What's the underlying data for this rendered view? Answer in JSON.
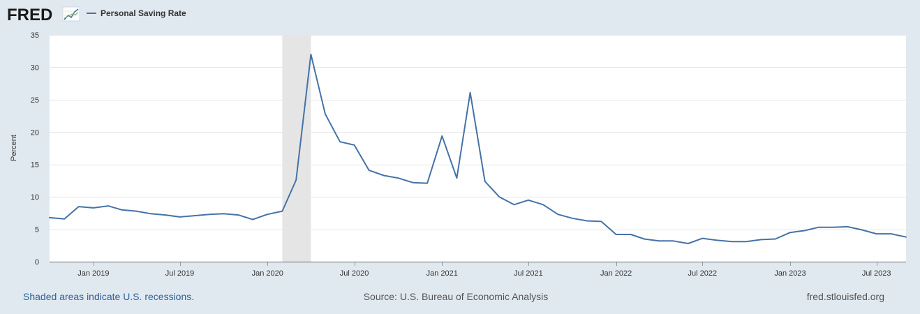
{
  "header": {
    "logo_text": "FRED",
    "logo_icon": "chart-line-icon",
    "legend_label": "Personal Saving Rate"
  },
  "footer": {
    "recession_note": "Shaded areas indicate U.S. recessions.",
    "source": "Source: U.S. Bureau of Economic Analysis",
    "site": "fred.stlouisfed.org"
  },
  "colors": {
    "background": "#e1e9f0",
    "plot_background": "#ffffff",
    "series": "#4572a7",
    "recession_shade": "#e5e5e5",
    "grid": "#e6e6e6",
    "footer_link": "#2f5f98",
    "footer_text": "#555555",
    "logo": "#1a1a1a"
  },
  "chart_data": {
    "type": "line",
    "title": "",
    "xlabel": "",
    "ylabel": "Percent",
    "ylim": [
      0,
      35
    ],
    "yticks": [
      0,
      5,
      10,
      15,
      20,
      25,
      30,
      35
    ],
    "xlim": [
      "2018-10-01",
      "2023-09-01"
    ],
    "xticks": [
      {
        "date": "2019-01-01",
        "label": "Jan 2019"
      },
      {
        "date": "2019-07-01",
        "label": "Jul 2019"
      },
      {
        "date": "2020-01-01",
        "label": "Jan 2020"
      },
      {
        "date": "2020-07-01",
        "label": "Jul 2020"
      },
      {
        "date": "2021-01-01",
        "label": "Jan 2021"
      },
      {
        "date": "2021-07-01",
        "label": "Jul 2021"
      },
      {
        "date": "2022-01-01",
        "label": "Jan 2022"
      },
      {
        "date": "2022-07-01",
        "label": "Jul 2022"
      },
      {
        "date": "2023-01-01",
        "label": "Jan 2023"
      },
      {
        "date": "2023-07-01",
        "label": "Jul 2023"
      }
    ],
    "grid": true,
    "legend_position": "top-left",
    "recessions": [
      {
        "start": "2020-02-01",
        "end": "2020-04-01"
      }
    ],
    "series": [
      {
        "name": "Personal Saving Rate",
        "x": [
          "2018-10-01",
          "2018-11-01",
          "2018-12-01",
          "2019-01-01",
          "2019-02-01",
          "2019-03-01",
          "2019-04-01",
          "2019-05-01",
          "2019-06-01",
          "2019-07-01",
          "2019-08-01",
          "2019-09-01",
          "2019-10-01",
          "2019-11-01",
          "2019-12-01",
          "2020-01-01",
          "2020-02-01",
          "2020-03-01",
          "2020-04-01",
          "2020-05-01",
          "2020-06-01",
          "2020-07-01",
          "2020-08-01",
          "2020-09-01",
          "2020-10-01",
          "2020-11-01",
          "2020-12-01",
          "2021-01-01",
          "2021-02-01",
          "2021-03-01",
          "2021-04-01",
          "2021-05-01",
          "2021-06-01",
          "2021-07-01",
          "2021-08-01",
          "2021-09-01",
          "2021-10-01",
          "2021-11-01",
          "2021-12-01",
          "2022-01-01",
          "2022-02-01",
          "2022-03-01",
          "2022-04-01",
          "2022-05-01",
          "2022-06-01",
          "2022-07-01",
          "2022-08-01",
          "2022-09-01",
          "2022-10-01",
          "2022-11-01",
          "2022-12-01",
          "2023-01-01",
          "2023-02-01",
          "2023-03-01",
          "2023-04-01",
          "2023-05-01",
          "2023-06-01",
          "2023-07-01",
          "2023-08-01",
          "2023-09-01"
        ],
        "values": [
          6.8,
          6.6,
          8.5,
          8.3,
          8.6,
          8.0,
          7.8,
          7.4,
          7.2,
          6.9,
          7.1,
          7.3,
          7.4,
          7.2,
          6.5,
          7.3,
          7.8,
          12.6,
          32.0,
          22.8,
          18.5,
          18.0,
          14.1,
          13.3,
          12.9,
          12.2,
          12.1,
          19.4,
          12.9,
          26.1,
          12.4,
          10.0,
          8.8,
          9.5,
          8.8,
          7.3,
          6.7,
          6.3,
          6.2,
          4.2,
          4.2,
          3.5,
          3.2,
          3.2,
          2.8,
          3.6,
          3.3,
          3.1,
          3.1,
          3.4,
          3.5,
          4.5,
          4.8,
          5.3,
          5.3,
          5.4,
          4.9,
          4.3,
          4.3,
          3.8
        ]
      }
    ]
  }
}
